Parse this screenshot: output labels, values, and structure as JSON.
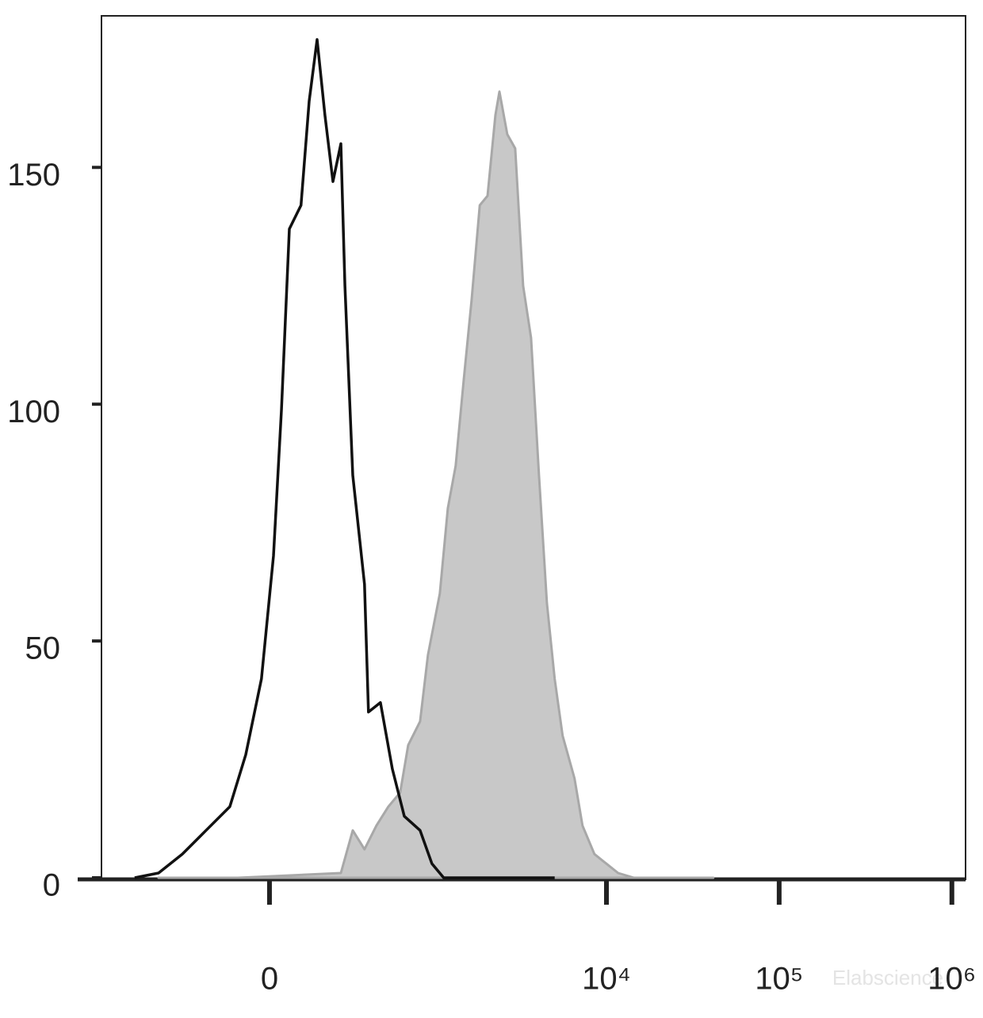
{
  "chart_data": {
    "type": "histogram-overlay",
    "xscale": "biexponential",
    "xlim": [
      -1040,
      1200000
    ],
    "ylim": [
      0,
      182
    ],
    "xticks": [
      0,
      {
        "value": 10000,
        "label": "10⁴"
      },
      {
        "value": 100000,
        "label": "10⁵"
      },
      {
        "value": 1000000,
        "label": "10⁶"
      }
    ],
    "yticks": [
      0,
      50,
      100,
      150
    ],
    "watermark": "Elabscience",
    "series": [
      {
        "color": "#c8c8c8",
        "stroke": "#a8a8a8",
        "filled": true,
        "x": [
          -466,
          -97,
          247,
          303,
          366,
          439,
          523,
          620,
          694,
          819,
          912,
          1073,
          1196,
          1331,
          1482,
          1649,
          1841,
          2044,
          2271,
          2395,
          2662,
          2959,
          3290,
          3658,
          4067,
          4520,
          5014,
          5574,
          6534,
          7264,
          8515,
          9979,
          11680,
          14430,
          41520
        ],
        "values": [
          0,
          0,
          1,
          10,
          6,
          11,
          15,
          18,
          28,
          33,
          47,
          60,
          78,
          87,
          105,
          122,
          142,
          144,
          161,
          166,
          157,
          154,
          125,
          114,
          85,
          58,
          42,
          30,
          21,
          11,
          5,
          3,
          1,
          0,
          0
        ]
      },
      {
        "color": "#111111",
        "filled": false,
        "x": [
          -657,
          -466,
          -323,
          -213,
          -124,
          -72,
          -24,
          12,
          36,
          60,
          97,
          124,
          152,
          181,
          213,
          247,
          265,
          303,
          366,
          389,
          466,
          554,
          657,
          819,
          963,
          1132,
          1739,
          5014
        ],
        "values": [
          0,
          1,
          5,
          10,
          15,
          26,
          42,
          68,
          99,
          137,
          142,
          164,
          177,
          161,
          147,
          155,
          125,
          85,
          62,
          35,
          37,
          23,
          13,
          10,
          3,
          0,
          0,
          0
        ]
      }
    ]
  }
}
